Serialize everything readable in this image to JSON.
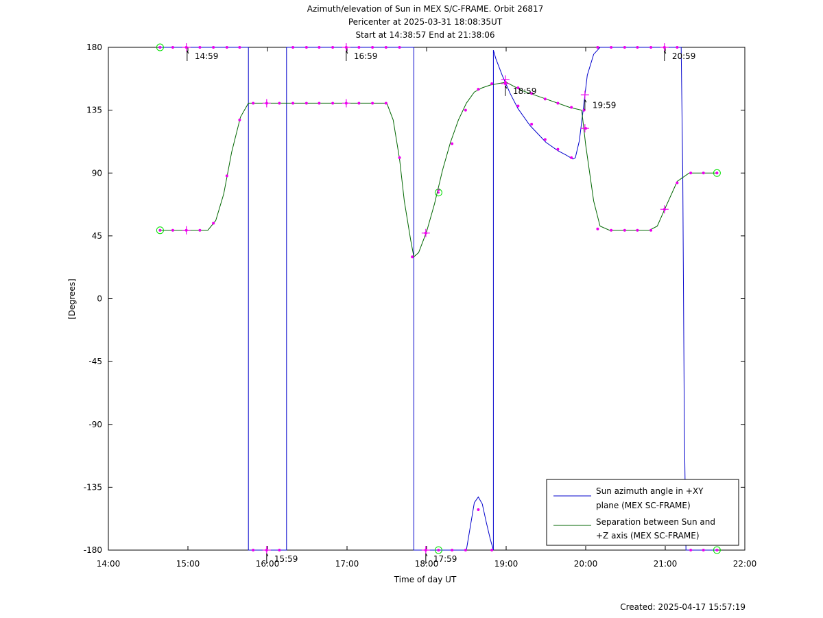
{
  "chart_data": {
    "type": "line",
    "title_lines": [
      "Azimuth/elevation of Sun in MEX S/C-FRAME.  Orbit 26817",
      "Pericenter at 2025-03-31 18:08:35UT",
      "Start at 14:38:57 End at 21:38:06"
    ],
    "xlabel": "Time of day UT",
    "ylabel": "[Degrees]",
    "footer": "Created: 2025-04-17 15:57:19",
    "xlim": [
      14.0,
      22.0
    ],
    "ylim": [
      -180,
      180
    ],
    "x_ticks": [
      {
        "v": 14,
        "label": "14:00"
      },
      {
        "v": 15,
        "label": "15:00"
      },
      {
        "v": 16,
        "label": "16:00"
      },
      {
        "v": 17,
        "label": "17:00"
      },
      {
        "v": 18,
        "label": "18:00"
      },
      {
        "v": 19,
        "label": "19:00"
      },
      {
        "v": 20,
        "label": "20:00"
      },
      {
        "v": 21,
        "label": "21:00"
      },
      {
        "v": 22,
        "label": "22:00"
      }
    ],
    "y_ticks": [
      {
        "v": 180,
        "label": "180"
      },
      {
        "v": 135,
        "label": "135"
      },
      {
        "v": 90,
        "label": "90"
      },
      {
        "v": 45,
        "label": "45"
      },
      {
        "v": 0,
        "label": "0"
      },
      {
        "v": -45,
        "label": "-45"
      },
      {
        "v": -90,
        "label": "-90"
      },
      {
        "v": -135,
        "label": "-135"
      },
      {
        "v": -180,
        "label": "-180"
      }
    ],
    "legend_position": "bottom-right",
    "series": [
      {
        "name": "Sun azimuth angle in +XY plane (MEX SC-FRAME)",
        "legend_lines": [
          "Sun azimuth angle in +XY",
          "plane (MEX SC-FRAME)"
        ],
        "color": "#0000cc",
        "x": [
          14.65,
          15.76,
          15.76,
          15.78,
          16.22,
          16.24,
          16.24,
          17.84,
          17.84,
          17.86,
          18.5,
          18.6,
          18.65,
          18.7,
          18.75,
          18.8,
          18.84,
          18.84,
          18.87,
          18.95,
          19.05,
          19.15,
          19.3,
          19.5,
          19.65,
          19.75,
          19.84,
          19.87,
          19.92,
          19.97,
          20.02,
          20.1,
          20.18,
          21.2,
          21.22,
          21.24,
          21.26,
          21.65
        ],
        "y": [
          180,
          180,
          -180,
          -180,
          -180,
          -180,
          180,
          180,
          -180,
          -180,
          -180,
          -146,
          -142,
          -147,
          -160,
          -172,
          -180,
          178,
          172,
          160,
          147,
          136,
          124,
          112,
          106,
          103,
          100,
          101,
          113,
          136,
          160,
          175,
          180,
          180,
          90,
          -90,
          -180,
          -180
        ]
      },
      {
        "name": "Separation between Sun and +Z axis (MEX SC-FRAME)",
        "legend_lines": [
          "Separation between Sun and",
          "+Z axis (MEX SC-FRAME)"
        ],
        "color": "#006600",
        "x": [
          14.65,
          15.25,
          15.35,
          15.45,
          15.55,
          15.66,
          15.76,
          16.0,
          17.5,
          17.58,
          17.66,
          17.72,
          17.8,
          17.84,
          17.9,
          18.0,
          18.1,
          18.2,
          18.3,
          18.4,
          18.5,
          18.6,
          18.7,
          18.8,
          18.9,
          19.0,
          19.2,
          19.5,
          19.8,
          19.95,
          20.0,
          20.1,
          20.18,
          20.3,
          20.8,
          20.9,
          21.0,
          21.15,
          21.3,
          21.65
        ],
        "y": [
          49,
          49,
          56,
          75,
          105,
          130,
          140,
          140,
          140,
          128,
          100,
          70,
          42,
          30,
          33,
          48,
          68,
          92,
          112,
          128,
          140,
          148,
          151,
          153,
          154,
          155,
          149,
          143,
          137,
          135,
          110,
          70,
          52,
          49,
          49,
          52,
          65,
          84,
          90,
          90
        ]
      }
    ],
    "markers": {
      "dots": [
        [
          14.65,
          49
        ],
        [
          14.81,
          49
        ],
        [
          14.98,
          49
        ],
        [
          15.15,
          49
        ],
        [
          15.32,
          54
        ],
        [
          15.49,
          88
        ],
        [
          15.65,
          128
        ],
        [
          15.82,
          140
        ],
        [
          15.99,
          140
        ],
        [
          16.15,
          140
        ],
        [
          16.32,
          140
        ],
        [
          16.49,
          140
        ],
        [
          16.65,
          140
        ],
        [
          16.82,
          140
        ],
        [
          16.99,
          140
        ],
        [
          17.15,
          140
        ],
        [
          17.32,
          140
        ],
        [
          17.49,
          140
        ],
        [
          17.66,
          101
        ],
        [
          17.82,
          30
        ],
        [
          17.99,
          47
        ],
        [
          18.15,
          78
        ],
        [
          18.32,
          111
        ],
        [
          18.49,
          135
        ],
        [
          18.65,
          150
        ],
        [
          18.82,
          154
        ],
        [
          18.99,
          155
        ],
        [
          19.15,
          151
        ],
        [
          19.32,
          147
        ],
        [
          19.49,
          143
        ],
        [
          19.65,
          140
        ],
        [
          19.82,
          137
        ],
        [
          19.98,
          135
        ],
        [
          20.15,
          50
        ],
        [
          20.32,
          49
        ],
        [
          20.49,
          49
        ],
        [
          20.65,
          49
        ],
        [
          20.82,
          49
        ],
        [
          20.99,
          64
        ],
        [
          21.15,
          83
        ],
        [
          21.32,
          90
        ],
        [
          21.48,
          90
        ],
        [
          21.65,
          90
        ],
        [
          14.65,
          180
        ],
        [
          14.81,
          180
        ],
        [
          14.98,
          180
        ],
        [
          15.15,
          180
        ],
        [
          15.32,
          180
        ],
        [
          15.49,
          180
        ],
        [
          15.65,
          180
        ],
        [
          15.82,
          -180
        ],
        [
          15.99,
          -180
        ],
        [
          16.15,
          -180
        ],
        [
          16.32,
          180
        ],
        [
          16.49,
          180
        ],
        [
          16.65,
          180
        ],
        [
          16.82,
          180
        ],
        [
          16.99,
          180
        ],
        [
          17.15,
          180
        ],
        [
          17.32,
          180
        ],
        [
          17.49,
          180
        ],
        [
          17.66,
          180
        ],
        [
          17.99,
          -180
        ],
        [
          18.15,
          -180
        ],
        [
          18.32,
          -180
        ],
        [
          18.49,
          -180
        ],
        [
          18.82,
          -180
        ],
        [
          18.65,
          -151
        ],
        [
          18.99,
          154
        ],
        [
          19.15,
          138
        ],
        [
          19.32,
          125
        ],
        [
          19.49,
          114
        ],
        [
          19.65,
          107
        ],
        [
          19.82,
          101
        ],
        [
          20.0,
          122
        ],
        [
          20.15,
          180
        ],
        [
          20.32,
          180
        ],
        [
          20.49,
          180
        ],
        [
          20.65,
          180
        ],
        [
          20.82,
          180
        ],
        [
          20.99,
          180
        ],
        [
          21.15,
          180
        ],
        [
          21.32,
          -180
        ],
        [
          21.48,
          -180
        ],
        [
          21.65,
          -180
        ]
      ],
      "crosses": [
        [
          14.98,
          180
        ],
        [
          14.98,
          49
        ],
        [
          15.99,
          140
        ],
        [
          15.99,
          -180
        ],
        [
          16.99,
          180
        ],
        [
          16.99,
          140
        ],
        [
          17.99,
          47
        ],
        [
          17.99,
          -180
        ],
        [
          18.99,
          157
        ],
        [
          18.99,
          154
        ],
        [
          19.99,
          146
        ],
        [
          19.99,
          122
        ],
        [
          20.99,
          180
        ],
        [
          20.99,
          64
        ]
      ],
      "circles": [
        [
          14.65,
          180
        ],
        [
          14.65,
          49
        ],
        [
          18.15,
          76
        ],
        [
          18.15,
          -180
        ],
        [
          21.65,
          90
        ],
        [
          21.65,
          -180
        ]
      ]
    },
    "annotations": [
      {
        "x": 14.99,
        "y": 180,
        "label": "14:59"
      },
      {
        "x": 15.99,
        "y": -180,
        "label": "15:59"
      },
      {
        "x": 16.99,
        "y": 180,
        "label": "16:59"
      },
      {
        "x": 17.99,
        "y": -180,
        "label": "17:59"
      },
      {
        "x": 18.99,
        "y": 155,
        "label": "18:59"
      },
      {
        "x": 19.99,
        "y": 145,
        "label": "19:59"
      },
      {
        "x": 20.99,
        "y": 180,
        "label": "20:59"
      }
    ]
  }
}
